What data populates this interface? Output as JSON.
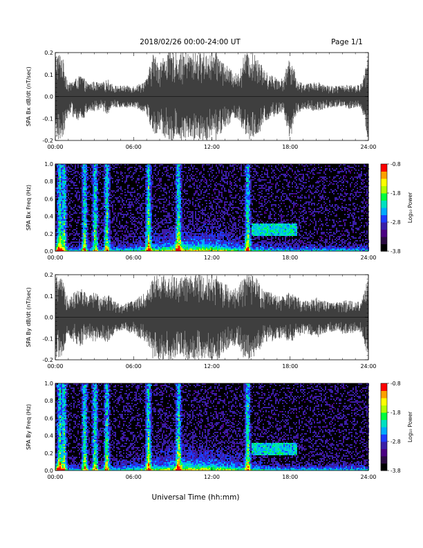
{
  "header": {
    "title": "2018/02/26  00:00-24:00 UT",
    "page": "Page 1/1"
  },
  "footer": {
    "xlabel": "Universal Time (hh:mm)"
  },
  "colors": {
    "trace": "#000000",
    "background": "#ffffff",
    "colormap": [
      "#000000",
      "#2a0a40",
      "#4b0082",
      "#3a1ea8",
      "#1e3cff",
      "#00aaff",
      "#00e0c0",
      "#00ff40",
      "#b0ff00",
      "#ffff00",
      "#ffa000",
      "#ff0000"
    ]
  },
  "chart_data": [
    {
      "type": "line",
      "ylabel": "SPA Bx dB/dt (nT/sec)",
      "xlim": [
        "00:00",
        "24:00"
      ],
      "ylim": [
        -0.2,
        0.2
      ],
      "x_ticks": [
        "00:00",
        "06:00",
        "12:00",
        "18:00",
        "24:00"
      ],
      "y_ticks": [
        "-0.2",
        "-0.1",
        "0.0",
        "0.1",
        "0.2"
      ],
      "x_hours": [
        0,
        0.5,
        1,
        1.5,
        2,
        2.5,
        3,
        3.5,
        4,
        4.5,
        5,
        5.5,
        6,
        6.5,
        7,
        7.5,
        8,
        8.5,
        9,
        9.5,
        10,
        10.5,
        11,
        11.5,
        12,
        12.5,
        13,
        13.5,
        14,
        14.5,
        15,
        15.5,
        16,
        16.5,
        17,
        17.5,
        18,
        18.5,
        19,
        19.5,
        20,
        20.5,
        21,
        21.5,
        22,
        22.5,
        23,
        23.5,
        24
      ],
      "envelope_upper": [
        0.2,
        0.2,
        0.06,
        0.08,
        0.1,
        0.06,
        0.07,
        0.06,
        0.08,
        0.05,
        0.05,
        0.05,
        0.05,
        0.06,
        0.08,
        0.2,
        0.16,
        0.2,
        0.2,
        0.2,
        0.2,
        0.2,
        0.2,
        0.2,
        0.2,
        0.2,
        0.15,
        0.12,
        0.1,
        0.2,
        0.2,
        0.2,
        0.12,
        0.1,
        0.09,
        0.08,
        0.2,
        0.08,
        0.06,
        0.06,
        0.07,
        0.06,
        0.05,
        0.05,
        0.05,
        0.06,
        0.05,
        0.06,
        0.2
      ],
      "envelope_lower": [
        -0.2,
        -0.2,
        -0.08,
        -0.1,
        -0.12,
        -0.07,
        -0.07,
        -0.06,
        -0.08,
        -0.05,
        -0.05,
        -0.05,
        -0.05,
        -0.06,
        -0.08,
        -0.18,
        -0.16,
        -0.2,
        -0.2,
        -0.2,
        -0.2,
        -0.2,
        -0.2,
        -0.2,
        -0.2,
        -0.2,
        -0.14,
        -0.12,
        -0.1,
        -0.2,
        -0.2,
        -0.2,
        -0.12,
        -0.1,
        -0.09,
        -0.08,
        -0.2,
        -0.08,
        -0.06,
        -0.06,
        -0.07,
        -0.06,
        -0.05,
        -0.05,
        -0.05,
        -0.06,
        -0.05,
        -0.06,
        -0.2
      ]
    },
    {
      "type": "heatmap",
      "ylabel": "SPA Bx Freq (Hz)",
      "colorbar_label": "Log₁₀ Power",
      "colorbar_ticks": [
        "-0.8",
        "-1.8",
        "-2.8",
        "-3.8"
      ],
      "colorbar_range": [
        -3.8,
        -0.8
      ],
      "xlim": [
        "00:00",
        "24:00"
      ],
      "ylim": [
        0.0,
        1.0
      ],
      "x_ticks": [
        "00:00",
        "06:00",
        "12:00",
        "18:00",
        "24:00"
      ],
      "y_ticks": [
        "0.0",
        "0.2",
        "0.4",
        "0.6",
        "0.8",
        "1.0"
      ],
      "broadband_events_hours": [
        0.3,
        0.6,
        2.2,
        3.0,
        3.9,
        7.1,
        9.4,
        14.7
      ],
      "band_0_2_to_0_35Hz_hours": [
        15.0,
        18.5
      ]
    },
    {
      "type": "line",
      "ylabel": "SPA By dB/dt (nT/sec)",
      "xlim": [
        "00:00",
        "24:00"
      ],
      "ylim": [
        -0.2,
        0.2
      ],
      "x_ticks": [
        "00:00",
        "06:00",
        "12:00",
        "18:00",
        "24:00"
      ],
      "y_ticks": [
        "-0.2",
        "-0.1",
        "0.0",
        "0.1",
        "0.2"
      ],
      "x_hours": [
        0,
        0.5,
        1,
        1.5,
        2,
        2.5,
        3,
        3.5,
        4,
        4.5,
        5,
        5.5,
        6,
        6.5,
        7,
        7.5,
        8,
        8.5,
        9,
        9.5,
        10,
        10.5,
        11,
        11.5,
        12,
        12.5,
        13,
        13.5,
        14,
        14.5,
        15,
        15.5,
        16,
        16.5,
        17,
        17.5,
        18,
        18.5,
        19,
        19.5,
        20,
        20.5,
        21,
        21.5,
        22,
        22.5,
        23,
        23.5,
        24
      ],
      "envelope_upper": [
        0.2,
        0.18,
        0.1,
        0.12,
        0.14,
        0.1,
        0.12,
        0.1,
        0.12,
        0.08,
        0.06,
        0.07,
        0.08,
        0.1,
        0.12,
        0.2,
        0.2,
        0.2,
        0.2,
        0.18,
        0.2,
        0.2,
        0.2,
        0.2,
        0.2,
        0.2,
        0.16,
        0.14,
        0.14,
        0.2,
        0.2,
        0.18,
        0.12,
        0.12,
        0.1,
        0.1,
        0.12,
        0.1,
        0.08,
        0.08,
        0.1,
        0.08,
        0.07,
        0.07,
        0.08,
        0.08,
        0.07,
        0.08,
        0.2
      ],
      "envelope_lower": [
        -0.2,
        -0.18,
        -0.1,
        -0.12,
        -0.14,
        -0.1,
        -0.12,
        -0.1,
        -0.12,
        -0.08,
        -0.06,
        -0.07,
        -0.08,
        -0.1,
        -0.12,
        -0.2,
        -0.2,
        -0.2,
        -0.2,
        -0.18,
        -0.2,
        -0.2,
        -0.2,
        -0.2,
        -0.2,
        -0.2,
        -0.16,
        -0.14,
        -0.14,
        -0.2,
        -0.2,
        -0.18,
        -0.12,
        -0.12,
        -0.1,
        -0.1,
        -0.12,
        -0.1,
        -0.08,
        -0.08,
        -0.1,
        -0.08,
        -0.07,
        -0.07,
        -0.08,
        -0.08,
        -0.07,
        -0.08,
        -0.2
      ]
    },
    {
      "type": "heatmap",
      "ylabel": "SPA By Freq (Hz)",
      "colorbar_label": "Log₁₀ Power",
      "colorbar_ticks": [
        "-0.8",
        "-1.8",
        "-2.8",
        "-3.8"
      ],
      "colorbar_range": [
        -3.8,
        -0.8
      ],
      "xlim": [
        "00:00",
        "24:00"
      ],
      "ylim": [
        0.0,
        1.0
      ],
      "x_ticks": [
        "00:00",
        "06:00",
        "12:00",
        "18:00",
        "24:00"
      ],
      "y_ticks": [
        "0.0",
        "0.2",
        "0.4",
        "0.6",
        "0.8",
        "1.0"
      ],
      "broadband_events_hours": [
        0.3,
        0.6,
        2.2,
        3.0,
        3.9,
        7.1,
        9.4,
        14.7
      ],
      "band_0_2_to_0_35Hz_hours": [
        15.0,
        18.5
      ]
    }
  ]
}
